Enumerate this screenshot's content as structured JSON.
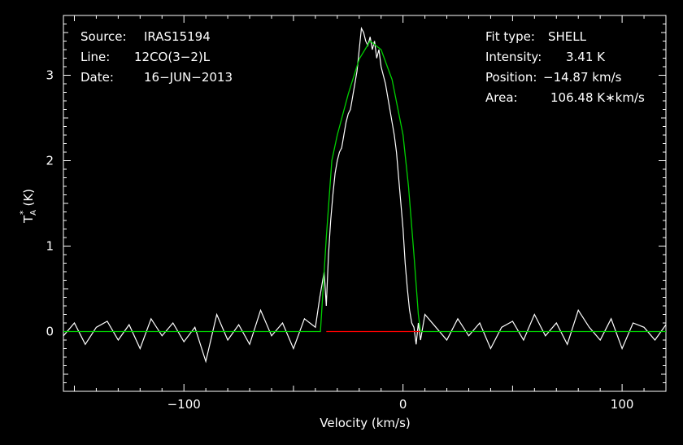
{
  "chart_data": {
    "type": "line",
    "xlabel": "Velocity (km/s)",
    "ylabel": "T_A^* (K)",
    "ylabel_parts": {
      "base": "T",
      "sub": "A",
      "sup": "*",
      "unit": "(K)"
    },
    "xlim": [
      -155,
      120
    ],
    "ylim": [
      -0.7,
      3.7
    ],
    "x_ticks": [
      {
        "value": -100,
        "label": "−100"
      },
      {
        "value": 0,
        "label": "0"
      },
      {
        "value": 100,
        "label": "100"
      }
    ],
    "y_ticks": [
      {
        "value": 0,
        "label": "0"
      },
      {
        "value": 1,
        "label": "1"
      },
      {
        "value": 2,
        "label": "2"
      },
      {
        "value": 3,
        "label": "3"
      }
    ],
    "info_left": [
      {
        "key": "Source:",
        "value": "IRAS15194"
      },
      {
        "key": "Line:",
        "value": "12CO(3−2)L"
      },
      {
        "key": "Date:",
        "value": "16−JUN−2013"
      }
    ],
    "info_right": [
      {
        "key": "Fit type:",
        "value": "SHELL"
      },
      {
        "key": "Intensity:",
        "value": "3.41 K"
      },
      {
        "key": "Position:",
        "value": "−14.87 km/s"
      },
      {
        "key": "Area:",
        "value": "106.48 K∗km/s"
      }
    ],
    "series": [
      {
        "role": "spectrum",
        "color": "#ffffff",
        "x": [
          -155,
          -150,
          -145,
          -140,
          -135,
          -130,
          -125,
          -120,
          -115,
          -110,
          -105,
          -100,
          -95,
          -90,
          -85,
          -80,
          -75,
          -70,
          -65,
          -60,
          -55,
          -50,
          -45,
          -40,
          -38,
          -36,
          -35,
          -34,
          -33,
          -32,
          -31,
          -30,
          -29,
          -28,
          -27,
          -26,
          -25,
          -24,
          -23,
          -22,
          -21,
          -20,
          -19,
          -18,
          -17,
          -16,
          -15,
          -14,
          -13,
          -12,
          -11,
          -10,
          -9,
          -8,
          -7,
          -6,
          -5,
          -4,
          -3,
          -2,
          -1,
          0,
          1,
          2,
          3,
          4,
          5,
          6,
          7,
          8,
          10,
          15,
          20,
          25,
          30,
          35,
          40,
          45,
          50,
          55,
          60,
          65,
          70,
          75,
          80,
          85,
          90,
          95,
          100,
          105,
          110,
          115,
          120
        ],
        "y": [
          -0.05,
          0.1,
          -0.15,
          0.05,
          0.12,
          -0.1,
          0.08,
          -0.2,
          0.15,
          -0.05,
          0.1,
          -0.12,
          0.05,
          -0.35,
          0.2,
          -0.1,
          0.08,
          -0.15,
          0.25,
          -0.05,
          0.1,
          -0.2,
          0.15,
          0.05,
          0.4,
          0.7,
          0.3,
          0.9,
          1.3,
          1.6,
          1.85,
          2.0,
          2.1,
          2.15,
          2.3,
          2.45,
          2.55,
          2.6,
          2.75,
          2.9,
          3.05,
          3.3,
          3.55,
          3.5,
          3.4,
          3.35,
          3.45,
          3.3,
          3.4,
          3.2,
          3.3,
          3.1,
          3.0,
          2.9,
          2.75,
          2.6,
          2.45,
          2.3,
          2.1,
          1.8,
          1.5,
          1.2,
          0.8,
          0.5,
          0.25,
          0.1,
          0.05,
          -0.15,
          0.1,
          -0.1,
          0.2,
          0.05,
          -0.1,
          0.15,
          -0.05,
          0.1,
          -0.2,
          0.05,
          0.12,
          -0.1,
          0.2,
          -0.05,
          0.1,
          -0.15,
          0.25,
          0.05,
          -0.1,
          0.15,
          -0.2,
          0.1,
          0.05,
          -0.1,
          0.08
        ]
      },
      {
        "role": "fit",
        "color": "#00d000",
        "x": [
          -155,
          -40,
          -37.7,
          -35,
          -32.5,
          -30,
          -25,
          -20,
          -15,
          -10,
          -5,
          0,
          2.5,
          5,
          7,
          8,
          10,
          120
        ],
        "y": [
          0,
          0,
          0,
          1.1,
          2.0,
          2.3,
          2.78,
          3.19,
          3.4,
          3.3,
          2.95,
          2.3,
          1.7,
          0.9,
          0.2,
          0,
          0,
          0
        ]
      },
      {
        "role": "baseline-window",
        "color": "#ff0000",
        "x": [
          -35,
          8
        ],
        "y": [
          0,
          0
        ]
      }
    ]
  }
}
